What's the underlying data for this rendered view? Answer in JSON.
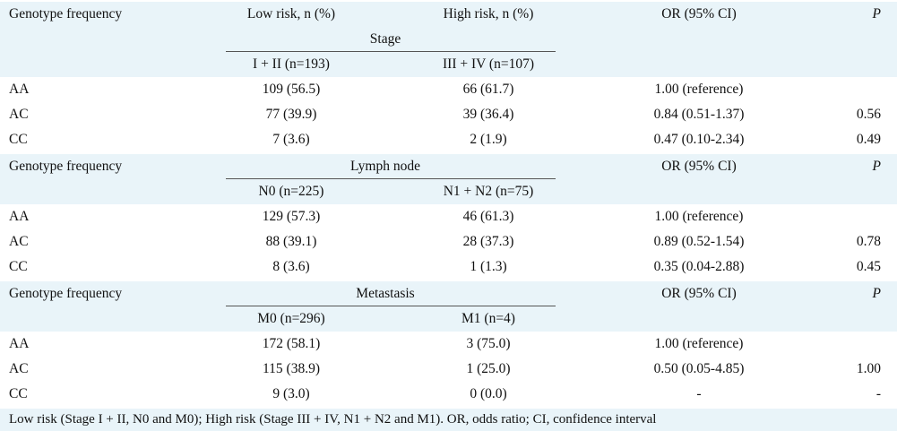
{
  "sections": [
    {
      "head": {
        "col0": "Genotype frequency",
        "low": "Low risk, n (%)",
        "high": "High risk, n (%)",
        "or": "OR (95% CI)",
        "p": "P"
      },
      "group": "Stage",
      "sub": {
        "low": "I + II (n=193)",
        "high": "III + IV (n=107)"
      },
      "rows": [
        {
          "genotype": "AA",
          "low": "109 (56.5)",
          "high": "66 (61.7)",
          "or": "1.00 (reference)",
          "p": ""
        },
        {
          "genotype": "AC",
          "low": "77 (39.9)",
          "high": "39 (36.4)",
          "or": "0.84 (0.51-1.37)",
          "p": "0.56"
        },
        {
          "genotype": "CC",
          "low": "7 (3.6)",
          "high": "2 (1.9)",
          "or": "0.47 (0.10-2.34)",
          "p": "0.49"
        }
      ]
    },
    {
      "head": {
        "col0": "Genotype frequency",
        "or": "OR (95% CI)",
        "p": "P"
      },
      "group": "Lymph node",
      "sub": {
        "low": "N0 (n=225)",
        "high": "N1 + N2 (n=75)"
      },
      "rows": [
        {
          "genotype": "AA",
          "low": "129 (57.3)",
          "high": "46 (61.3)",
          "or": "1.00 (reference)",
          "p": ""
        },
        {
          "genotype": "AC",
          "low": "88 (39.1)",
          "high": "28 (37.3)",
          "or": "0.89 (0.52-1.54)",
          "p": "0.78"
        },
        {
          "genotype": "CC",
          "low": "8 (3.6)",
          "high": "1 (1.3)",
          "or": "0.35 (0.04-2.88)",
          "p": "0.45"
        }
      ]
    },
    {
      "head": {
        "col0": "Genotype frequency",
        "or": "OR (95% CI)",
        "p": "P"
      },
      "group": "Metastasis",
      "sub": {
        "low": "M0 (n=296)",
        "high": "M1 (n=4)"
      },
      "rows": [
        {
          "genotype": "AA",
          "low": "172 (58.1)",
          "high": "3 (75.0)",
          "or": "1.00 (reference)",
          "p": ""
        },
        {
          "genotype": "AC",
          "low": "115 (38.9)",
          "high": "1 (25.0)",
          "or": "0.50 (0.05-4.85)",
          "p": "1.00"
        },
        {
          "genotype": "CC",
          "low": "9 (3.0)",
          "high": "0 (0.0)",
          "or": "-",
          "p": "-"
        }
      ]
    }
  ],
  "footnote": "Low risk (Stage I + II, N0 and M0); High risk (Stage III + IV, N1 + N2 and M1). OR, odds ratio; CI, confidence interval",
  "colors": {
    "header_bg": "#e9f4f9",
    "text": "#111111",
    "rule": "#555555"
  }
}
